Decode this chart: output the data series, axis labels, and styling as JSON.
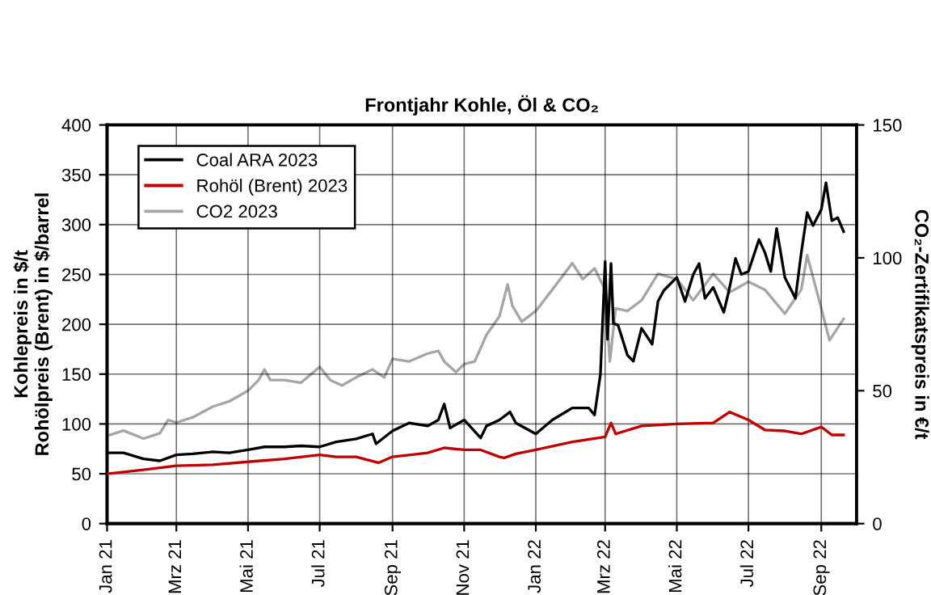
{
  "chart_data": {
    "type": "line",
    "title": "Frontjahr Kohle, Öl & CO₂",
    "ylabel": "Kohlepreis in $/t\nRohölpreis (Brent) in $/barrel",
    "y2label": "CO₂-Zertifikatspreis in €/t",
    "xlim": [
      "2021-01-01",
      "2022-10-01"
    ],
    "xticks": [
      {
        "value": "2021-01-01",
        "label": "Jan 21"
      },
      {
        "value": "2021-03-01",
        "label": "Mrz 21"
      },
      {
        "value": "2021-05-01",
        "label": "Mai 21"
      },
      {
        "value": "2021-07-01",
        "label": "Jul 21"
      },
      {
        "value": "2021-09-01",
        "label": "Sep 21"
      },
      {
        "value": "2021-11-01",
        "label": "Nov 21"
      },
      {
        "value": "2022-01-01",
        "label": "Jan 22"
      },
      {
        "value": "2022-03-01",
        "label": "Mrz 22"
      },
      {
        "value": "2022-05-01",
        "label": "Mai 22"
      },
      {
        "value": "2022-07-01",
        "label": "Jul 22"
      },
      {
        "value": "2022-09-01",
        "label": "Sep 22"
      }
    ],
    "ylim": [
      0,
      400
    ],
    "yticks": [
      0,
      50,
      100,
      150,
      200,
      250,
      300,
      350,
      400
    ],
    "y2lim": [
      0,
      150
    ],
    "y2ticks": [
      0,
      50,
      100,
      150
    ],
    "grid": true,
    "legend": "top left",
    "marker": "none",
    "line_style": "solid",
    "series": [
      {
        "name": "Coal ARA 2023",
        "color": "#000000",
        "x": [
          "2021-01-01",
          "2021-01-15",
          "2021-02-01",
          "2021-02-15",
          "2021-03-01",
          "2021-03-15",
          "2021-04-01",
          "2021-04-15",
          "2021-05-01",
          "2021-05-15",
          "2021-06-01",
          "2021-06-15",
          "2021-07-01",
          "2021-07-15",
          "2021-08-01",
          "2021-08-15",
          "2021-08-18",
          "2021-09-01",
          "2021-09-15",
          "2021-10-01",
          "2021-10-10",
          "2021-10-15",
          "2021-10-20",
          "2021-11-01",
          "2021-11-15",
          "2021-11-20",
          "2021-12-01",
          "2021-12-10",
          "2021-12-15",
          "2022-01-01",
          "2022-01-15",
          "2022-02-01",
          "2022-02-15",
          "2022-02-20",
          "2022-02-25",
          "2022-03-01",
          "2022-03-03",
          "2022-03-06",
          "2022-03-08",
          "2022-03-12",
          "2022-03-20",
          "2022-03-25",
          "2022-04-01",
          "2022-04-10",
          "2022-04-15",
          "2022-04-20",
          "2022-05-01",
          "2022-05-08",
          "2022-05-15",
          "2022-05-20",
          "2022-05-25",
          "2022-06-01",
          "2022-06-10",
          "2022-06-15",
          "2022-06-20",
          "2022-06-25",
          "2022-07-01",
          "2022-07-10",
          "2022-07-15",
          "2022-07-20",
          "2022-07-25",
          "2022-08-01",
          "2022-08-10",
          "2022-08-15",
          "2022-08-20",
          "2022-08-25",
          "2022-09-01",
          "2022-09-05",
          "2022-09-10",
          "2022-09-15",
          "2022-09-20"
        ],
        "values": [
          71,
          71,
          65,
          63,
          69,
          70,
          72,
          71,
          74,
          77,
          77,
          78,
          77,
          82,
          85,
          90,
          80,
          93,
          101,
          98,
          104,
          120,
          96,
          104,
          86,
          98,
          104,
          112,
          101,
          90,
          104,
          116,
          116,
          109,
          150,
          263,
          185,
          261,
          201,
          199,
          169,
          163,
          196,
          180,
          223,
          234,
          247,
          223,
          250,
          261,
          226,
          237,
          212,
          237,
          266,
          250,
          253,
          285,
          272,
          253,
          296,
          247,
          226,
          272,
          312,
          299,
          315,
          342,
          304,
          307,
          293
        ]
      },
      {
        "name": "Rohöl (Brent) 2023",
        "color": "#c00000",
        "x": [
          "2021-01-01",
          "2021-02-01",
          "2021-03-01",
          "2021-04-01",
          "2021-05-01",
          "2021-06-01",
          "2021-07-01",
          "2021-07-15",
          "2021-08-01",
          "2021-08-20",
          "2021-09-01",
          "2021-10-01",
          "2021-10-15",
          "2021-11-01",
          "2021-11-15",
          "2021-12-01",
          "2021-12-05",
          "2021-12-15",
          "2022-01-01",
          "2022-02-01",
          "2022-03-01",
          "2022-03-06",
          "2022-03-10",
          "2022-04-01",
          "2022-05-01",
          "2022-06-01",
          "2022-06-15",
          "2022-07-01",
          "2022-07-15",
          "2022-08-01",
          "2022-08-15",
          "2022-09-01",
          "2022-09-10",
          "2022-09-20"
        ],
        "values": [
          50,
          54,
          58,
          59,
          62,
          65,
          69,
          67,
          67,
          61,
          67,
          71,
          76,
          74,
          74,
          67,
          66,
          70,
          74,
          82,
          87,
          101,
          90,
          98,
          100,
          101,
          112,
          104,
          94,
          93,
          90,
          97,
          89,
          89
        ]
      },
      {
        "name": "CO2 2023",
        "color": "#a6a6a6",
        "axis": "y2",
        "x": [
          "2021-01-01",
          "2021-01-15",
          "2021-02-01",
          "2021-02-15",
          "2021-02-22",
          "2021-03-01",
          "2021-03-15",
          "2021-04-01",
          "2021-04-15",
          "2021-05-01",
          "2021-05-10",
          "2021-05-15",
          "2021-05-20",
          "2021-06-01",
          "2021-06-15",
          "2021-07-01",
          "2021-07-10",
          "2021-07-20",
          "2021-08-01",
          "2021-08-15",
          "2021-08-25",
          "2021-09-01",
          "2021-09-15",
          "2021-10-01",
          "2021-10-10",
          "2021-10-15",
          "2021-10-25",
          "2021-11-01",
          "2021-11-10",
          "2021-11-20",
          "2021-12-01",
          "2021-12-08",
          "2021-12-12",
          "2021-12-20",
          "2022-01-01",
          "2022-01-15",
          "2022-02-01",
          "2022-02-10",
          "2022-02-20",
          "2022-03-01",
          "2022-03-05",
          "2022-03-10",
          "2022-03-20",
          "2022-04-01",
          "2022-04-15",
          "2022-05-01",
          "2022-05-15",
          "2022-06-01",
          "2022-06-15",
          "2022-07-01",
          "2022-07-15",
          "2022-08-01",
          "2022-08-15",
          "2022-08-20",
          "2022-09-01",
          "2022-09-08",
          "2022-09-20"
        ],
        "values": [
          33,
          35,
          32,
          34,
          39,
          38,
          40,
          44,
          46,
          50,
          54,
          58,
          54,
          54,
          53,
          59,
          54,
          52,
          55,
          58,
          55,
          62,
          61,
          64,
          65,
          61,
          57,
          60,
          61,
          71,
          78,
          90,
          82,
          76,
          80,
          88,
          98,
          92,
          96,
          88,
          61,
          81,
          80,
          84,
          94,
          92,
          84,
          94,
          87,
          91,
          88,
          79,
          88,
          101,
          81,
          69,
          77
        ]
      }
    ]
  }
}
